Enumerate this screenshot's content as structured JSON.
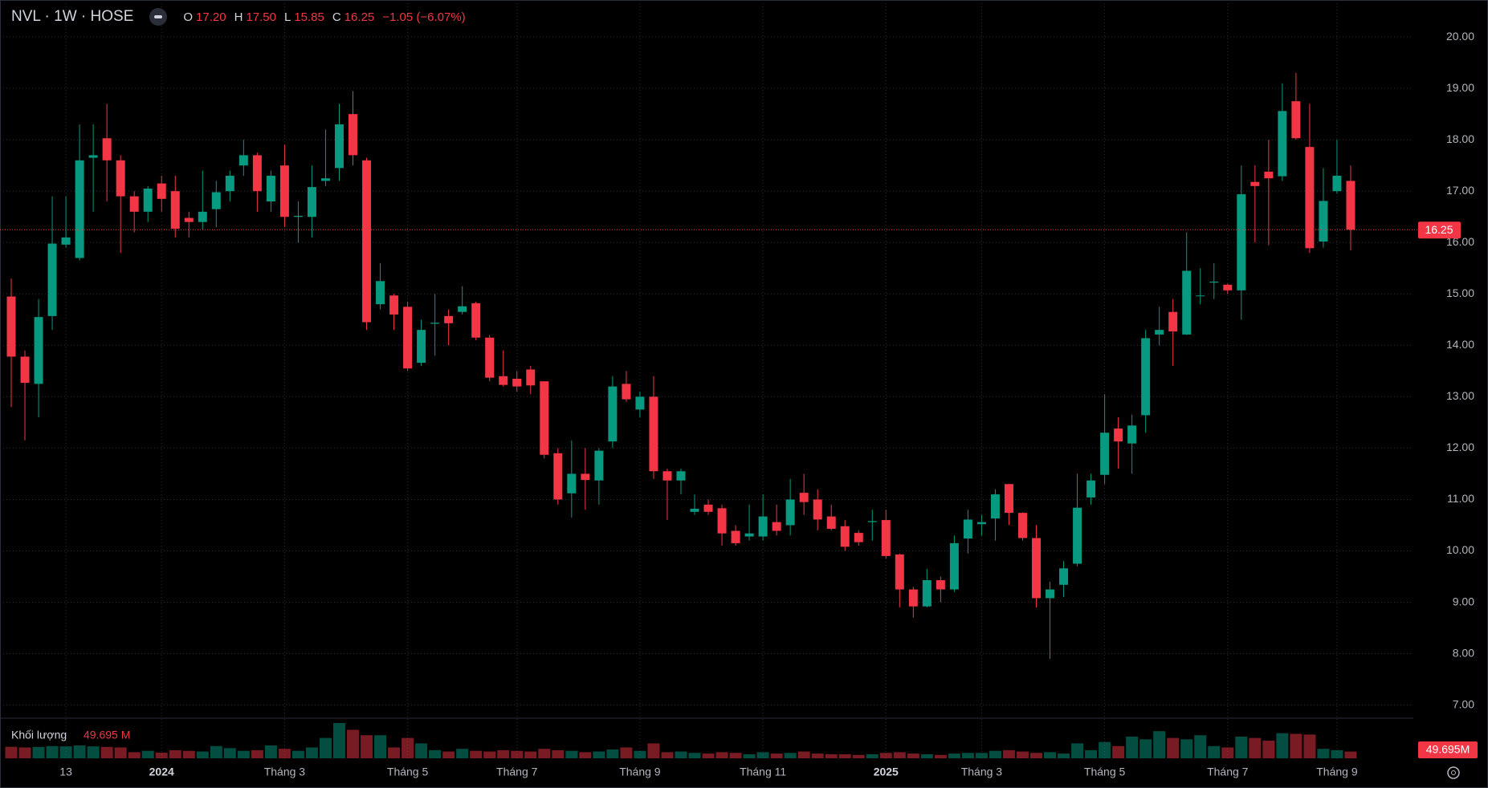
{
  "chart_data": {
    "type": "candlestick",
    "title": "NVL · 1W · HOSE",
    "legend": {
      "o_label": "O",
      "o": "17.20",
      "h_label": "H",
      "h": "17.50",
      "l_label": "L",
      "l": "15.85",
      "c_label": "C",
      "c": "16.25",
      "change": "−1.05 (−6.07%)"
    },
    "up_color": "#089981",
    "down_color": "#f23645",
    "grid": true,
    "categories": [
      null,
      null,
      null,
      null,
      "13",
      null,
      null,
      null,
      null,
      null,
      null,
      "2024",
      null,
      null,
      null,
      null,
      null,
      null,
      null,
      null,
      "Tháng 3",
      null,
      null,
      null,
      null,
      null,
      null,
      null,
      null,
      "Tháng 5",
      null,
      null,
      null,
      null,
      null,
      null,
      null,
      "Tháng 7",
      null,
      null,
      null,
      null,
      null,
      null,
      null,
      null,
      "Tháng 9",
      null,
      null,
      null,
      null,
      null,
      null,
      null,
      null,
      "Tháng 11",
      null,
      null,
      null,
      null,
      null,
      null,
      null,
      null,
      "2025",
      null,
      null,
      null,
      null,
      null,
      null,
      "Tháng 3",
      null,
      null,
      null,
      null,
      null,
      null,
      null,
      null,
      "Tháng 5",
      null,
      null,
      null,
      null,
      null,
      null,
      null,
      null,
      "Tháng 7",
      null,
      null,
      null,
      null,
      null,
      null,
      null,
      "Tháng 9",
      null
    ],
    "open": [
      14.95,
      13.78,
      13.25,
      14.57,
      15.96,
      15.7,
      17.65,
      18.03,
      17.6,
      16.9,
      16.6,
      17.15,
      17.0,
      16.48,
      16.4,
      16.65,
      17.0,
      17.5,
      17.7,
      16.8,
      17.5,
      16.5,
      16.5,
      17.2,
      17.45,
      18.5,
      17.6,
      14.8,
      14.97,
      14.75,
      13.66,
      14.42,
      14.57,
      14.65,
      14.82,
      14.15,
      13.4,
      13.35,
      13.53,
      13.3,
      11.9,
      11.12,
      11.5,
      11.37,
      12.13,
      13.25,
      12.75,
      13.0,
      11.55,
      11.37,
      10.76,
      10.9,
      10.83,
      10.39,
      10.28,
      10.28,
      10.56,
      10.5,
      11.13,
      11.0,
      10.67,
      10.48,
      10.35,
      10.56,
      10.6,
      9.93,
      9.25,
      8.92,
      9.43,
      9.25,
      10.24,
      10.52,
      10.63,
      11.3,
      10.74,
      10.25,
      9.08,
      9.34,
      9.75,
      11.04,
      11.48,
      12.38,
      12.09,
      12.64,
      14.21,
      14.65,
      14.21,
      14.96,
      15.22,
      15.18,
      15.07,
      17.18,
      17.38,
      17.29,
      18.75,
      17.86,
      16.02,
      17.0,
      17.2
    ],
    "high": [
      15.3,
      13.9,
      14.9,
      16.9,
      16.9,
      18.3,
      18.3,
      18.7,
      17.7,
      17.0,
      17.1,
      17.3,
      17.3,
      16.6,
      17.4,
      17.2,
      17.4,
      18.0,
      17.75,
      17.4,
      17.9,
      16.8,
      17.5,
      18.2,
      18.7,
      18.95,
      17.65,
      15.6,
      15.0,
      14.85,
      14.5,
      15.0,
      14.7,
      15.15,
      14.85,
      14.2,
      13.9,
      13.5,
      13.6,
      13.3,
      12.0,
      12.15,
      12.0,
      12.0,
      13.4,
      13.5,
      13.1,
      13.4,
      11.6,
      11.6,
      11.1,
      11.0,
      10.9,
      10.5,
      10.9,
      11.1,
      10.9,
      11.4,
      11.5,
      11.2,
      10.9,
      10.6,
      10.4,
      10.8,
      10.8,
      9.95,
      9.3,
      9.65,
      9.5,
      10.3,
      10.8,
      10.7,
      11.2,
      11.3,
      10.75,
      10.5,
      9.4,
      9.8,
      11.5,
      11.5,
      13.05,
      12.6,
      12.65,
      14.3,
      14.75,
      14.9,
      16.2,
      15.5,
      15.6,
      15.2,
      17.5,
      17.5,
      18.0,
      19.1,
      19.3,
      18.7,
      17.45,
      18.0,
      17.5
    ],
    "low": [
      12.8,
      12.15,
      12.6,
      14.3,
      15.9,
      15.65,
      16.6,
      16.8,
      15.8,
      16.2,
      16.4,
      16.6,
      16.1,
      16.1,
      16.25,
      16.3,
      16.8,
      17.3,
      16.6,
      16.6,
      16.3,
      16.0,
      16.1,
      17.1,
      17.2,
      17.5,
      14.3,
      14.7,
      14.3,
      13.5,
      13.6,
      13.8,
      14.0,
      14.6,
      14.1,
      13.3,
      13.2,
      13.1,
      13.05,
      11.8,
      10.9,
      10.65,
      10.8,
      10.9,
      12.0,
      12.9,
      12.6,
      11.4,
      10.6,
      11.1,
      10.7,
      10.7,
      10.1,
      10.1,
      10.2,
      10.2,
      10.3,
      10.3,
      10.7,
      10.4,
      10.4,
      10.0,
      10.1,
      10.2,
      9.85,
      8.9,
      8.7,
      8.9,
      9.0,
      9.2,
      9.95,
      10.3,
      10.2,
      10.5,
      10.2,
      8.9,
      7.9,
      9.1,
      9.7,
      10.9,
      11.3,
      11.6,
      11.5,
      12.3,
      14.0,
      13.6,
      14.2,
      14.8,
      14.9,
      15.0,
      14.5,
      16.0,
      15.95,
      17.2,
      18.0,
      15.8,
      15.9,
      16.95,
      15.85
    ],
    "close": [
      13.78,
      13.27,
      14.55,
      15.98,
      16.1,
      17.6,
      17.7,
      17.6,
      16.9,
      16.6,
      17.05,
      16.85,
      16.27,
      16.4,
      16.6,
      16.98,
      17.3,
      17.7,
      17.0,
      17.3,
      16.5,
      16.52,
      17.08,
      17.25,
      18.3,
      17.7,
      14.45,
      15.25,
      14.6,
      13.55,
      14.3,
      14.44,
      14.43,
      14.76,
      14.15,
      13.37,
      13.23,
      13.2,
      13.22,
      11.87,
      11.0,
      11.5,
      11.38,
      11.95,
      13.2,
      12.95,
      13.0,
      11.55,
      11.37,
      11.55,
      10.82,
      10.76,
      10.34,
      10.15,
      10.34,
      10.67,
      10.39,
      11.0,
      10.95,
      10.61,
      10.43,
      10.08,
      10.17,
      10.58,
      9.9,
      9.25,
      8.92,
      9.43,
      9.25,
      10.15,
      10.61,
      10.56,
      11.1,
      10.74,
      10.25,
      9.08,
      9.25,
      9.66,
      10.84,
      11.37,
      12.3,
      12.13,
      12.44,
      14.14,
      14.3,
      14.27,
      15.45,
      14.97,
      15.24,
      15.07,
      16.94,
      17.1,
      17.25,
      18.56,
      18.03,
      15.89,
      16.81,
      17.3,
      16.25
    ],
    "ylim": [
      6.76,
      20.72
    ],
    "yticks": [
      {
        "value": 7,
        "label": "7.00"
      },
      {
        "value": 8,
        "label": "8.00"
      },
      {
        "value": 9,
        "label": "9.00"
      },
      {
        "value": 10,
        "label": "10.00"
      },
      {
        "value": 11,
        "label": "11.00"
      },
      {
        "value": 12,
        "label": "12.00"
      },
      {
        "value": 13,
        "label": "13.00"
      },
      {
        "value": 14,
        "label": "14.00"
      },
      {
        "value": 15,
        "label": "15.00"
      },
      {
        "value": 16,
        "label": "16.00"
      },
      {
        "value": 17,
        "label": "17.00"
      },
      {
        "value": 18,
        "label": "18.00"
      },
      {
        "value": 19,
        "label": "19.00"
      },
      {
        "value": 20,
        "label": "20.00"
      }
    ],
    "volume": {
      "name": "Khối lượng",
      "last_label": "49.695 M",
      "badge": "49.695M",
      "values": [
        85,
        80,
        84,
        90,
        88,
        95,
        88,
        84,
        80,
        45,
        55,
        42,
        60,
        55,
        50,
        90,
        75,
        55,
        60,
        95,
        70,
        55,
        80,
        150,
        260,
        210,
        170,
        170,
        80,
        150,
        110,
        60,
        50,
        70,
        55,
        50,
        60,
        55,
        50,
        70,
        60,
        55,
        45,
        50,
        65,
        80,
        55,
        110,
        45,
        50,
        40,
        35,
        45,
        40,
        30,
        45,
        35,
        40,
        50,
        35,
        30,
        30,
        25,
        30,
        40,
        45,
        35,
        30,
        25,
        35,
        40,
        40,
        55,
        60,
        50,
        40,
        45,
        35,
        110,
        60,
        120,
        90,
        160,
        140,
        200,
        150,
        140,
        170,
        90,
        80,
        160,
        150,
        130,
        185,
        180,
        175,
        70,
        60,
        49.695
      ]
    }
  }
}
